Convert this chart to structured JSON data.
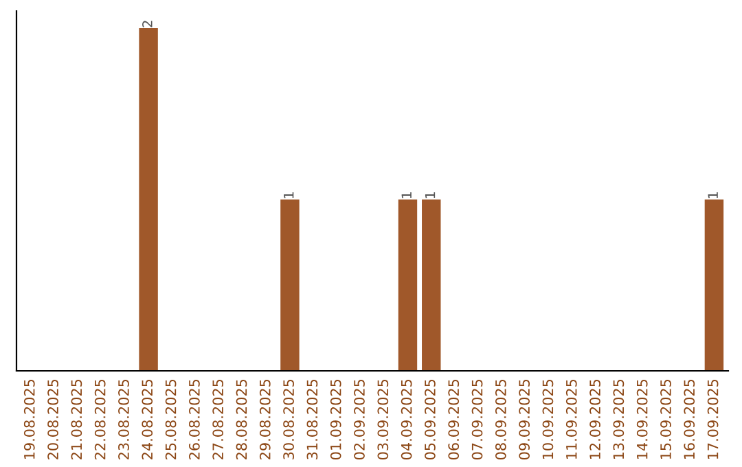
{
  "chart_data": {
    "type": "bar",
    "categories": [
      "19.08.2025",
      "20.08.2025",
      "21.08.2025",
      "22.08.2025",
      "23.08.2025",
      "24.08.2025",
      "25.08.2025",
      "26.08.2025",
      "27.08.2025",
      "28.08.2025",
      "29.08.2025",
      "30.08.2025",
      "31.08.2025",
      "01.09.2025",
      "02.09.2025",
      "03.09.2025",
      "04.09.2025",
      "05.09.2025",
      "06.09.2025",
      "07.09.2025",
      "08.09.2025",
      "09.09.2025",
      "10.09.2025",
      "11.09.2025",
      "12.09.2025",
      "13.09.2025",
      "14.09.2025",
      "15.09.2025",
      "16.09.2025",
      "17.09.2025"
    ],
    "values": [
      0,
      0,
      0,
      0,
      0,
      2,
      0,
      0,
      0,
      0,
      0,
      1,
      0,
      0,
      0,
      0,
      1,
      1,
      0,
      0,
      0,
      0,
      0,
      0,
      0,
      0,
      0,
      0,
      0,
      1
    ],
    "value_labels": [
      null,
      null,
      null,
      null,
      null,
      "2",
      null,
      null,
      null,
      null,
      null,
      "1",
      null,
      null,
      null,
      null,
      "1",
      "1",
      null,
      null,
      null,
      null,
      null,
      null,
      null,
      null,
      null,
      null,
      null,
      "1"
    ],
    "color": "#a0582a",
    "grid": false,
    "legend": false
  }
}
